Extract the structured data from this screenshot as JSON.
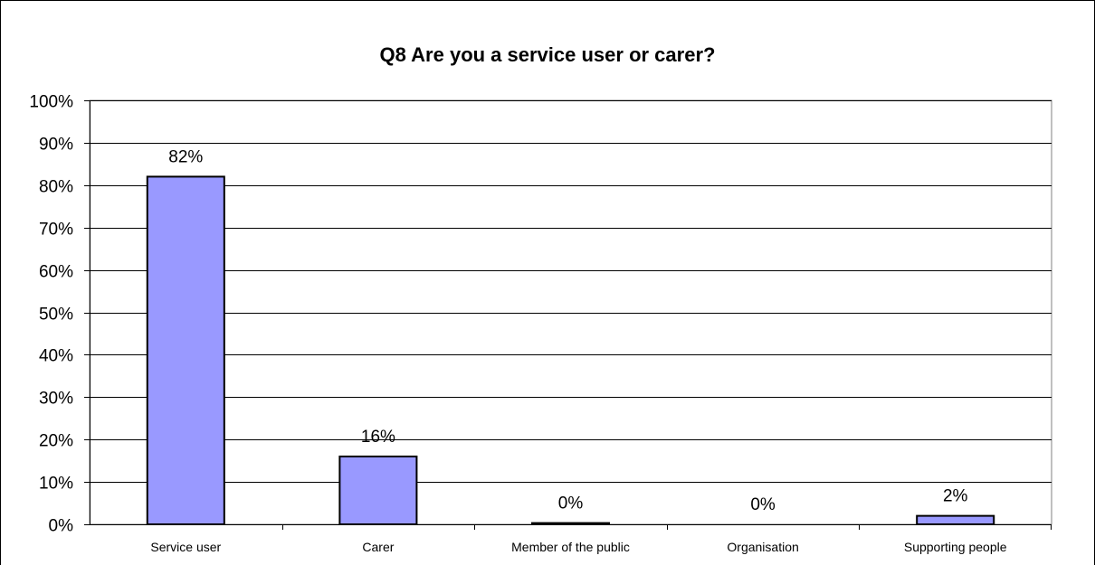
{
  "chart_data": {
    "type": "bar",
    "title": "Q8  Are you a service user or carer?",
    "categories": [
      "Service user",
      "Carer",
      "Member of the public",
      "Organisation",
      "Supporting people"
    ],
    "values": [
      82,
      16,
      0.3,
      0,
      2
    ],
    "data_labels": [
      "82%",
      "16%",
      "0%",
      "0%",
      "2%"
    ],
    "ylim": [
      0,
      100
    ],
    "yticks": [
      0,
      10,
      20,
      30,
      40,
      50,
      60,
      70,
      80,
      90,
      100
    ],
    "ytick_labels": [
      "0%",
      "10%",
      "20%",
      "30%",
      "40%",
      "50%",
      "60%",
      "70%",
      "80%",
      "90%",
      "100%"
    ],
    "xlabel": "",
    "ylabel": "",
    "grid": true,
    "legend": "none",
    "bar_color": "#9999ff",
    "bar_outline": "#000000",
    "grid_color": "#000000",
    "frame_color": "#808080"
  }
}
